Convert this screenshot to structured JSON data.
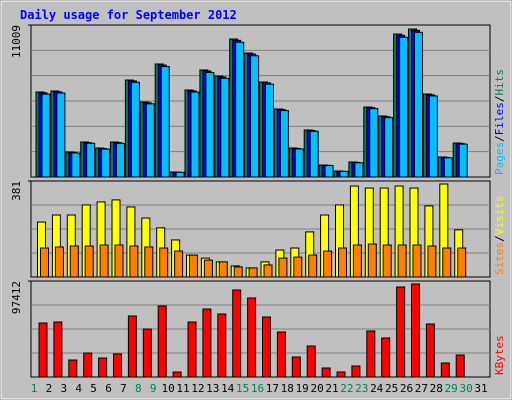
{
  "chart_data": [
    {
      "type": "bar",
      "title": "Daily usage for September 2012",
      "ylim": [
        0,
        11009
      ],
      "yticks": [
        11009
      ],
      "legend_separator": "/",
      "series": [
        {
          "name": "Hits",
          "color": "#00805c",
          "values": [
            6156,
            6229,
            1811,
            2535,
            2100,
            2535,
            7025,
            5432,
            8184,
            362,
            6301,
            7750,
            7315,
            9995,
            8981,
            6881,
            4925,
            2100,
            3404,
            869,
            435,
            1086,
            5070,
            4418,
            10357,
            10719,
            6012,
            1449,
            2463,
            null,
            null
          ]
        },
        {
          "name": "Files",
          "color": "#0000ff",
          "values": [
            6100,
            6170,
            1780,
            2490,
            2060,
            2490,
            6960,
            5380,
            8110,
            350,
            6240,
            7680,
            7250,
            9900,
            8900,
            6820,
            4880,
            2070,
            3370,
            850,
            420,
            1060,
            5020,
            4370,
            10260,
            10620,
            5950,
            1420,
            2430,
            null,
            null
          ]
        },
        {
          "name": "Pages",
          "color": "#00c0ff",
          "values": [
            6000,
            6080,
            1740,
            2440,
            2020,
            2440,
            6860,
            5300,
            8000,
            340,
            6150,
            7570,
            7150,
            9760,
            8780,
            6720,
            4810,
            2030,
            3310,
            830,
            410,
            1030,
            4950,
            4300,
            10120,
            10480,
            5870,
            1390,
            2380,
            null,
            null
          ]
        }
      ]
    },
    {
      "type": "bar",
      "ylim": [
        0,
        381
      ],
      "yticks": [
        381
      ],
      "legend_separator": "/",
      "series": [
        {
          "name": "Visits",
          "color": "#ffff00",
          "values": [
            218,
            246,
            246,
            286,
            298,
            306,
            278,
            234,
            195,
            147,
            87,
            75,
            60,
            44,
            36,
            60,
            107,
            115,
            179,
            246,
            286,
            361,
            353,
            353,
            361,
            353,
            282,
            369,
            187,
            null,
            null
          ]
        },
        {
          "name": "Sites",
          "color": "#ff8000",
          "values": [
            115,
            119,
            123,
            123,
            127,
            127,
            123,
            119,
            115,
            103,
            87,
            67,
            60,
            40,
            36,
            48,
            75,
            79,
            87,
            103,
            115,
            127,
            131,
            127,
            127,
            127,
            123,
            115,
            115,
            null,
            null
          ]
        }
      ]
    },
    {
      "type": "bar",
      "ylim": [
        0,
        97412
      ],
      "yticks": [
        97412
      ],
      "categories": [
        "1",
        "2",
        "3",
        "4",
        "5",
        "6",
        "7",
        "8",
        "9",
        "10",
        "11",
        "12",
        "13",
        "14",
        "15",
        "16",
        "17",
        "18",
        "19",
        "20",
        "21",
        "22",
        "23",
        "24",
        "25",
        "26",
        "27",
        "28",
        "29",
        "30",
        "31"
      ],
      "weekend": [
        0,
        7,
        8,
        14,
        15,
        21,
        22,
        28,
        29
      ],
      "weekend_color": "#00805c",
      "label_color": "#000000",
      "series": [
        {
          "name": "KBytes",
          "color": "#ff0000",
          "values": [
            54794,
            55809,
            17250,
            24353,
            19279,
            23338,
            61897,
            48706,
            72044,
            5074,
            55809,
            69000,
            63926,
            88279,
            80161,
            60882,
            45662,
            20294,
            31456,
            9132,
            5074,
            11162,
            46676,
            39573,
            91323,
            94367,
            53779,
            14206,
            22323,
            null,
            null
          ]
        }
      ]
    }
  ]
}
